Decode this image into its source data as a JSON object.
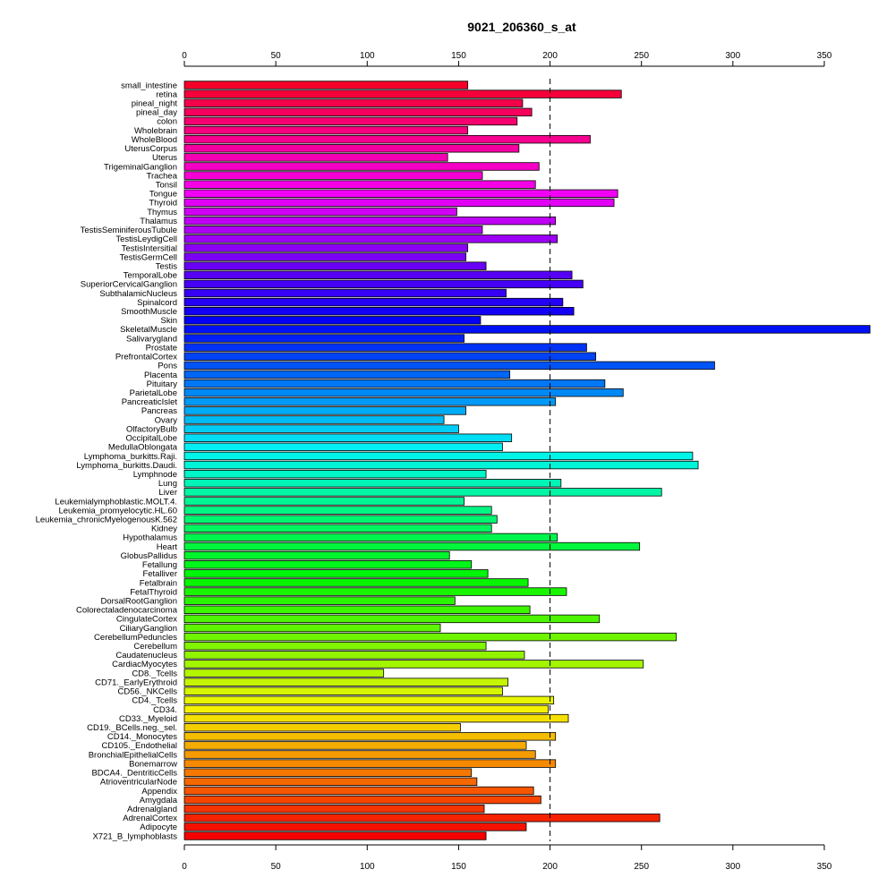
{
  "chart_data": {
    "type": "bar",
    "orientation": "horizontal",
    "title": "9021_206360_s_at",
    "xlabel": "",
    "ylabel": "",
    "xlim": [
      0,
      350
    ],
    "x_ticks": [
      0,
      50,
      100,
      150,
      200,
      250,
      300,
      350
    ],
    "x_tick_labels": [
      "0",
      "50",
      "100",
      "150",
      "200",
      "250",
      "300",
      "350"
    ],
    "reference_line": 200,
    "categories": [
      "small_intestine",
      "retina",
      "pineal_night",
      "pineal_day",
      "colon",
      "Wholebrain",
      "WholeBlood",
      "UterusCorpus",
      "Uterus",
      "TrigeminalGanglion",
      "Trachea",
      "Tonsil",
      "Tongue",
      "Thyroid",
      "Thymus",
      "Thalamus",
      "TestisSeminiferousTubule",
      "TestisLeydigCell",
      "TestisIntersitial",
      "TestisGermCell",
      "Testis",
      "TemporalLobe",
      "SuperiorCervicalGanglion",
      "SubthalamicNucleus",
      "Spinalcord",
      "SmoothMuscle",
      "Skin",
      "SkeletalMuscle",
      "Salivarygland",
      "Prostate",
      "PrefrontalCortex",
      "Pons",
      "Placenta",
      "Pituitary",
      "ParietalLobe",
      "PancreaticIslet",
      "Pancreas",
      "Ovary",
      "OlfactoryBulb",
      "OccipitalLobe",
      "MedullaOblongata",
      "Lymphoma_burkitts.Raji.",
      "Lymphoma_burkitts.Daudi.",
      "Lymphnode",
      "Lung",
      "Liver",
      "Leukemialymphoblastic.MOLT.4.",
      "Leukemia_promyelocytic.HL.60",
      "Leukemia_chronicMyelogenousK.562",
      "Kidney",
      "Hypothalamus",
      "Heart",
      "GlobusPallidus",
      "Fetallung",
      "Fetalliver",
      "Fetalbrain",
      "FetalThyroid",
      "DorsalRootGanglion",
      "Colorectaladenocarcinoma",
      "CingulateCortex",
      "CiliaryGanglion",
      "CerebellumPeduncles",
      "Cerebellum",
      "Caudatenucleus",
      "CardiacMyocytes",
      "CD8._Tcells",
      "CD71._EarlyErythroid",
      "CD56._NKCells",
      "CD4._Tcells",
      "CD34.",
      "CD33._Myeloid",
      "CD19._BCells.neg._sel.",
      "CD14._Monocytes",
      "CD105._Endothelial",
      "BronchialEpithelialCells",
      "Bonemarrow",
      "BDCA4._DentriticCells",
      "AtrioventricularNode",
      "Appendix",
      "Amygdala",
      "Adrenalgland",
      "AdrenalCortex",
      "Adipocyte",
      "X721_B_lymphoblasts"
    ],
    "values": [
      155,
      239,
      185,
      190,
      182,
      155,
      222,
      183,
      144,
      194,
      163,
      192,
      237,
      235,
      149,
      203,
      163,
      204,
      155,
      154,
      165,
      212,
      218,
      176,
      207,
      213,
      162,
      375,
      153,
      220,
      225,
      290,
      178,
      230,
      240,
      203,
      154,
      142,
      150,
      179,
      174,
      278,
      281,
      165,
      206,
      261,
      153,
      168,
      171,
      168,
      204,
      249,
      145,
      157,
      166,
      188,
      209,
      148,
      189,
      227,
      140,
      269,
      165,
      186,
      251,
      109,
      177,
      174,
      202,
      199,
      210,
      151,
      203,
      187,
      192,
      203,
      157,
      160,
      191,
      195,
      164,
      260,
      187,
      165
    ],
    "grid": false,
    "legend": "none"
  }
}
